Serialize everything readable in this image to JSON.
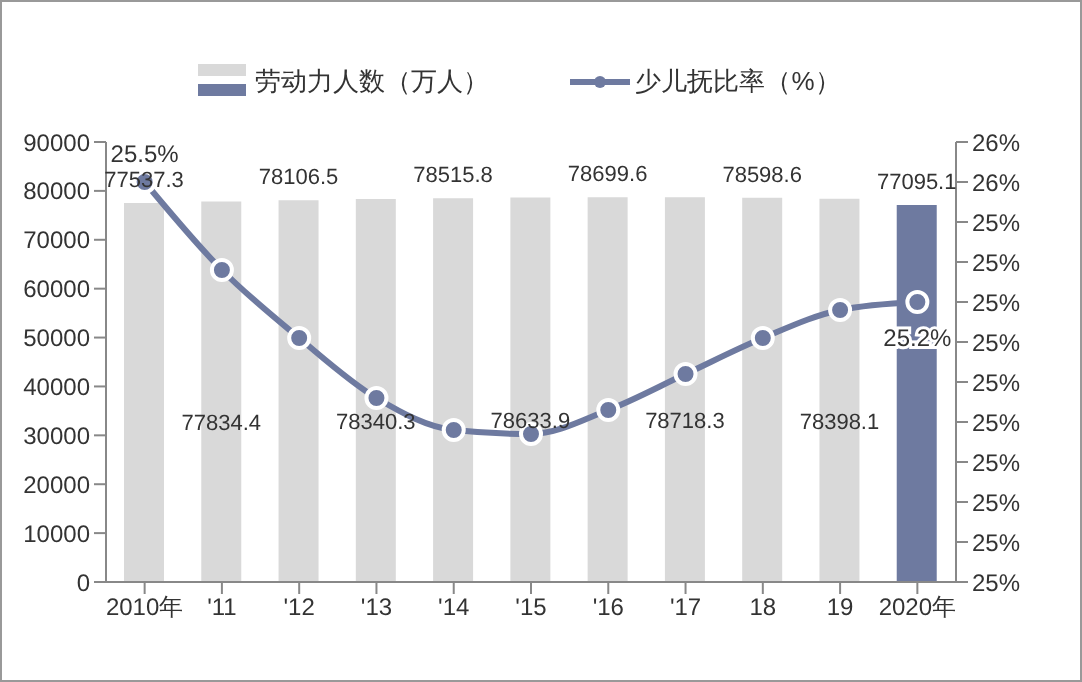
{
  "chart_data": {
    "type": "bar",
    "categories": [
      "2010年",
      "'11",
      "'12",
      "'13",
      "'14",
      "'15",
      "'16",
      "'17",
      "18",
      "19",
      "2020年"
    ],
    "series": [
      {
        "name": "劳动力人数（万人）",
        "color": "#d9d9d9",
        "colors": [
          "#d9d9d9",
          "#d9d9d9",
          "#d9d9d9",
          "#d9d9d9",
          "#d9d9d9",
          "#d9d9d9",
          "#d9d9d9",
          "#d9d9d9",
          "#d9d9d9",
          "#d9d9d9",
          "#6e7aa0"
        ],
        "values": [
          77537.3,
          77834.4,
          78106.5,
          78340.3,
          78515.8,
          78633.9,
          78699.6,
          78718.3,
          78598.6,
          78398.1,
          77095.1
        ]
      },
      {
        "type": "line",
        "name": "少儿抚比率（%）",
        "color": "#6e7aa0",
        "axis": "y2",
        "values": [
          25.5,
          25.28,
          25.11,
          24.96,
          24.88,
          24.87,
          24.93,
          25.02,
          25.11,
          25.18,
          25.2
        ],
        "value_labels": [
          "25.5%",
          null,
          null,
          null,
          null,
          null,
          null,
          null,
          null,
          null,
          "25.2%"
        ]
      }
    ],
    "ylim": [
      0,
      90000
    ],
    "yticks": [
      0,
      10000,
      20000,
      30000,
      40000,
      50000,
      60000,
      70000,
      80000,
      90000
    ],
    "y2lim": [
      24.5,
      25.6
    ],
    "y2ticks": [
      {
        "value": 24.5,
        "label": "25%"
      },
      {
        "value": 24.6,
        "label": "25%"
      },
      {
        "value": 24.7,
        "label": "25%"
      },
      {
        "value": 24.8,
        "label": "25%"
      },
      {
        "value": 24.9,
        "label": "25%"
      },
      {
        "value": 25.0,
        "label": "25%"
      },
      {
        "value": 25.1,
        "label": "25%"
      },
      {
        "value": 25.2,
        "label": "25%"
      },
      {
        "value": 25.3,
        "label": "25%"
      },
      {
        "value": 25.4,
        "label": "25%"
      },
      {
        "value": 25.5,
        "label": "26%"
      },
      {
        "value": 25.6,
        "label": "26%"
      }
    ],
    "data_labels": true,
    "legend": "top",
    "marker": "circle",
    "line_style": "solid"
  }
}
